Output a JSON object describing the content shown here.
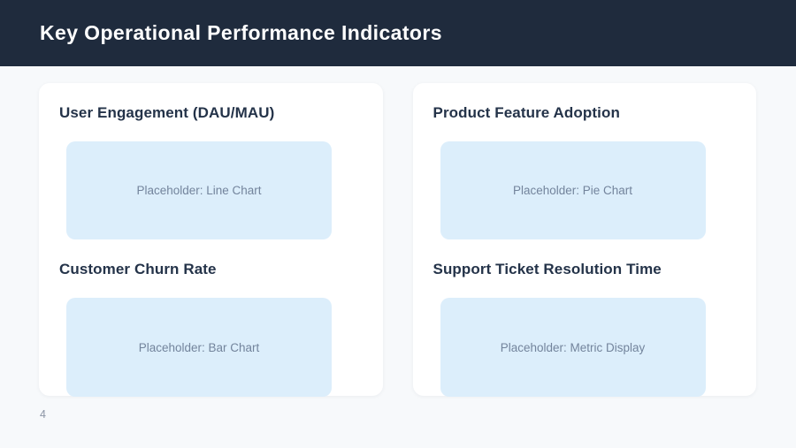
{
  "slide": {
    "title": "Key Operational Performance Indicators",
    "page_number": "4"
  },
  "cards": [
    {
      "sections": [
        {
          "heading": "User Engagement (DAU/MAU)",
          "placeholder": "Placeholder: Line Chart"
        },
        {
          "heading": "Customer Churn Rate",
          "placeholder": "Placeholder: Bar Chart"
        }
      ]
    },
    {
      "sections": [
        {
          "heading": "Product Feature Adoption",
          "placeholder": "Placeholder: Pie Chart"
        },
        {
          "heading": "Support Ticket Resolution Time",
          "placeholder": "Placeholder: Metric Display"
        }
      ]
    }
  ],
  "colors": {
    "header_bg": "#1f2b3d",
    "background": "#f7f9fb",
    "card_bg": "#ffffff",
    "placeholder_bg": "#dceefb",
    "placeholder_text": "#73849c",
    "heading_text": "#243349",
    "title_text": "#ffffff",
    "page_number_text": "#8b95a5"
  }
}
